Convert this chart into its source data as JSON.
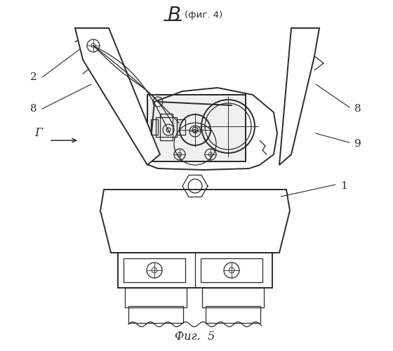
{
  "bg_color": "#ffffff",
  "line_color": "#2a2a2a",
  "fig_label": "Фиг.  5"
}
